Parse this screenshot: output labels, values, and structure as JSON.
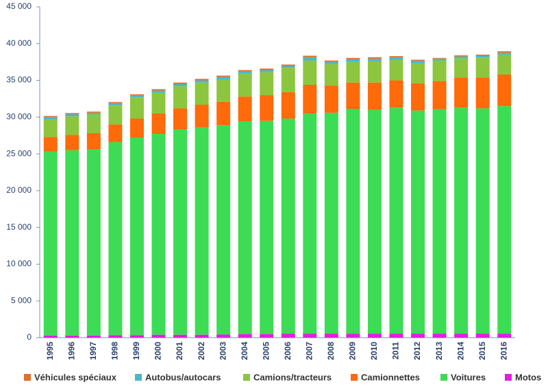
{
  "chart_data": {
    "type": "stacked_bar",
    "categories": [
      "1995",
      "1996",
      "1997",
      "1998",
      "1999",
      "2000",
      "2001",
      "2002",
      "2003",
      "2004",
      "2005",
      "2006",
      "2007",
      "2008",
      "2009",
      "2010",
      "2011",
      "2012",
      "2013",
      "2014",
      "2015",
      "2016"
    ],
    "series": [
      {
        "name": "Véhicules spéciaux",
        "color": "#e0702a",
        "values": [
          150,
          150,
          150,
          150,
          150,
          200,
          200,
          200,
          200,
          200,
          200,
          200,
          200,
          200,
          200,
          200,
          150,
          150,
          100,
          150,
          150,
          200
        ]
      },
      {
        "name": "Autobus/autocars",
        "color": "#4bb8c8",
        "values": [
          300,
          300,
          200,
          300,
          250,
          300,
          300,
          300,
          350,
          300,
          300,
          250,
          450,
          300,
          350,
          350,
          350,
          350,
          250,
          250,
          250,
          250
        ]
      },
      {
        "name": "Camions/tracteurs",
        "color": "#8cc63f",
        "values": [
          2400,
          2500,
          2600,
          2600,
          2900,
          2800,
          3000,
          3000,
          3000,
          3100,
          3100,
          3300,
          3300,
          2900,
          2800,
          2900,
          2800,
          2700,
          2800,
          2600,
          2700,
          2700
        ]
      },
      {
        "name": "Camionnettes",
        "color": "#ff6a0a",
        "values": [
          2000,
          2100,
          2200,
          2400,
          2600,
          2800,
          2900,
          3100,
          3200,
          3400,
          3500,
          3600,
          3900,
          3700,
          3600,
          3700,
          3700,
          3700,
          3800,
          4100,
          4200,
          4300
        ]
      },
      {
        "name": "Voitures",
        "color": "#3ddc55",
        "values": [
          25000,
          25200,
          25300,
          26250,
          26850,
          27300,
          27900,
          28200,
          28450,
          28900,
          29000,
          29250,
          29950,
          30050,
          30550,
          30450,
          30750,
          30350,
          30550,
          30750,
          30650,
          30950
        ]
      },
      {
        "name": "Motos",
        "color": "#e020e0",
        "values": [
          300,
          300,
          300,
          350,
          350,
          400,
          400,
          400,
          450,
          500,
          500,
          550,
          550,
          550,
          550,
          550,
          550,
          550,
          550,
          550,
          550,
          550
        ]
      }
    ],
    "ylim": [
      0,
      45000
    ],
    "yticks": [
      {
        "value": 0,
        "label": "0"
      },
      {
        "value": 5000,
        "label": "5 000"
      },
      {
        "value": 10000,
        "label": "10 000"
      },
      {
        "value": 15000,
        "label": "15 000"
      },
      {
        "value": 20000,
        "label": "20 000"
      },
      {
        "value": 25000,
        "label": "25 000"
      },
      {
        "value": 30000,
        "label": "30 000"
      },
      {
        "value": 35000,
        "label": "35 000"
      },
      {
        "value": 40000,
        "label": "40 000"
      },
      {
        "value": 45000,
        "label": "45 000"
      }
    ],
    "grid": false,
    "legend": "bottom"
  }
}
